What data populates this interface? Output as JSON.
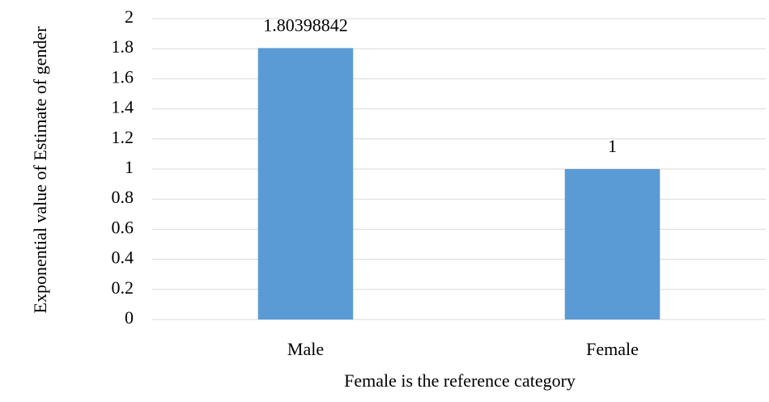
{
  "chart_data": {
    "type": "bar",
    "categories": [
      "Male",
      "Female"
    ],
    "values": [
      1.80398842,
      1
    ],
    "color": "#5b9bd5",
    "ylim": [
      0,
      2
    ],
    "yticks": [
      0,
      0.2,
      0.4,
      0.6,
      0.8,
      1,
      1.2,
      1.4,
      1.6,
      1.8,
      2
    ],
    "grid": true,
    "x_label": "Female is the reference category",
    "y_label": "Exponential value of Estimate of gender"
  }
}
